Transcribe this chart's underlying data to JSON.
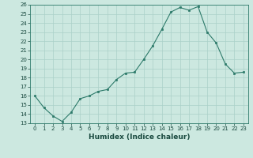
{
  "x": [
    0,
    1,
    2,
    3,
    4,
    5,
    6,
    7,
    8,
    9,
    10,
    11,
    12,
    13,
    14,
    15,
    16,
    17,
    18,
    19,
    20,
    21,
    22,
    23
  ],
  "y": [
    16,
    14.7,
    13.8,
    13.2,
    14.2,
    15.7,
    16.0,
    16.5,
    16.7,
    17.8,
    18.5,
    18.6,
    20.0,
    21.5,
    23.3,
    25.2,
    25.7,
    25.4,
    25.8,
    23.0,
    21.8,
    19.5,
    18.5,
    18.6
  ],
  "line_color": "#2d7a6a",
  "marker_color": "#2d7a6a",
  "bg_color": "#cce8e0",
  "grid_color": "#aad0c8",
  "xlabel": "Humidex (Indice chaleur)",
  "ylim": [
    13,
    26
  ],
  "xlim": [
    -0.5,
    23.5
  ],
  "yticks": [
    13,
    14,
    15,
    16,
    17,
    18,
    19,
    20,
    21,
    22,
    23,
    24,
    25,
    26
  ],
  "xticks": [
    0,
    1,
    2,
    3,
    4,
    5,
    6,
    7,
    8,
    9,
    10,
    11,
    12,
    13,
    14,
    15,
    16,
    17,
    18,
    19,
    20,
    21,
    22,
    23
  ],
  "tick_fontsize": 5.0,
  "xlabel_fontsize": 6.5
}
